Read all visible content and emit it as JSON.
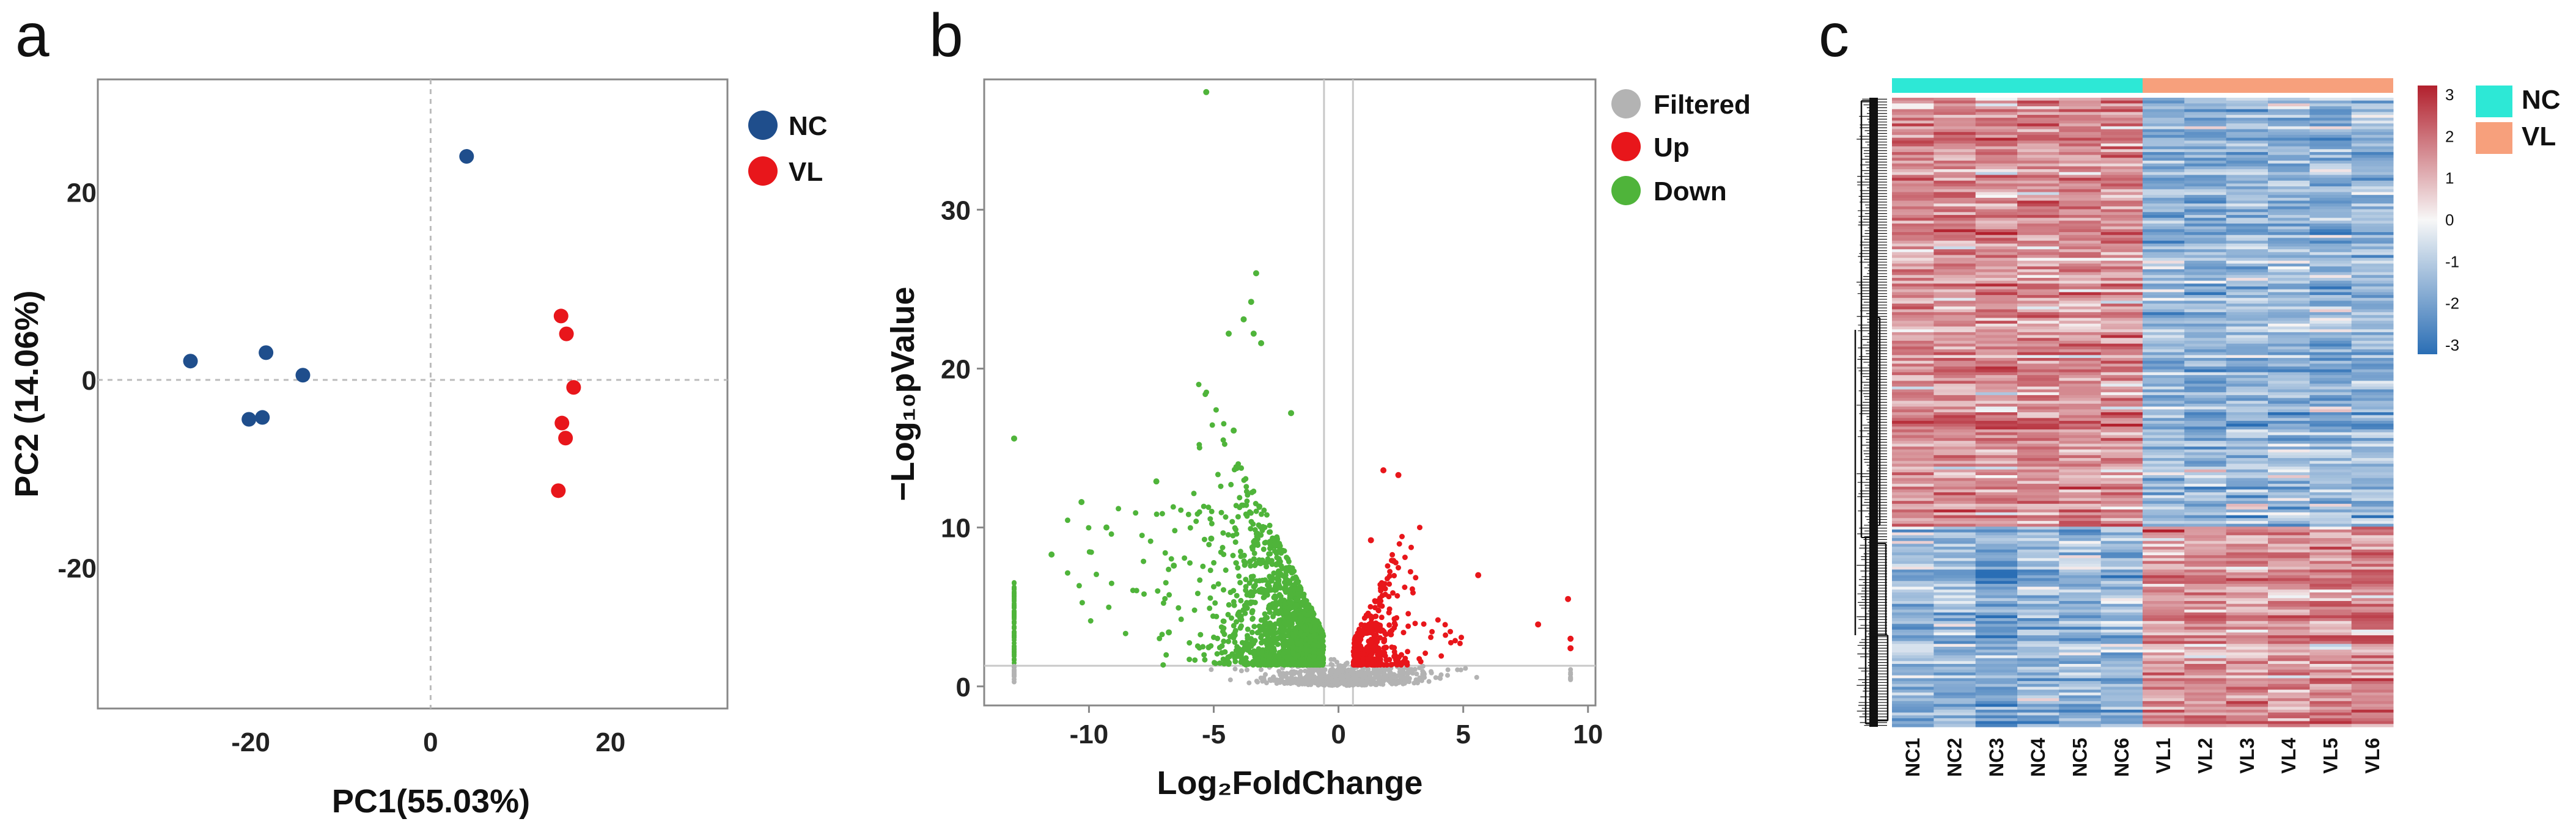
{
  "panels": {
    "a": "a",
    "b": "b",
    "c": "c"
  },
  "chart_data": [
    {
      "type": "scatter",
      "panel": "a",
      "xlabel": "PC1(55.03%)",
      "ylabel": "PC2 (14.06%)",
      "xlim": [
        -37,
        33
      ],
      "ylim": [
        -35,
        32
      ],
      "xticks": [
        "-20",
        "0",
        "20"
      ],
      "yticks": [
        "20",
        "0",
        "-20"
      ],
      "grid": false,
      "legend_position": "outside-right",
      "series": [
        {
          "name": "NC",
          "color": "#1f4e8c",
          "points": [
            [
              -26.7,
              2.0
            ],
            [
              -18.3,
              2.9
            ],
            [
              -14.2,
              0.5
            ],
            [
              -20.2,
              -4.2
            ],
            [
              -18.7,
              -4.0
            ],
            [
              4.0,
              23.8
            ]
          ]
        },
        {
          "name": "VL",
          "color": "#e8161b",
          "points": [
            [
              14.5,
              6.8
            ],
            [
              15.1,
              4.9
            ],
            [
              15.9,
              -0.8
            ],
            [
              14.6,
              -4.6
            ],
            [
              15.0,
              -6.2
            ],
            [
              14.2,
              -11.8
            ]
          ]
        }
      ]
    },
    {
      "type": "scatter",
      "panel": "b",
      "xlabel": "Log₂FoldChange",
      "ylabel": "−Log₁₀pValue",
      "xlim": [
        -14.2,
        10.3
      ],
      "ylim": [
        -1.2,
        38.2
      ],
      "xticks": [
        "-10",
        "-5",
        "0",
        "5",
        "10"
      ],
      "yticks": [
        "0",
        "10",
        "20",
        "30"
      ],
      "threshold_lines": {
        "x": [
          -0.58,
          0.58
        ],
        "y": 1.3
      },
      "legend_position": "outside-right",
      "series": [
        {
          "name": "Filtered",
          "color": "#b3b3b3"
        },
        {
          "name": "Up",
          "color": "#e8161b",
          "points": [
            [
              1.8,
              13.6
            ],
            [
              2.4,
              13.3
            ],
            [
              5.6,
              7.0
            ],
            [
              9.2,
              5.5
            ],
            [
              8.0,
              3.9
            ],
            [
              9.3,
              3.0
            ],
            [
              9.3,
              2.4
            ],
            [
              1.3,
              9.2
            ],
            [
              2.2,
              7.9
            ]
          ]
        },
        {
          "name": "Down",
          "color": "#4fb43a",
          "points": [
            [
              -5.3,
              37.4
            ],
            [
              -3.3,
              26.0
            ],
            [
              -3.5,
              24.2
            ],
            [
              -3.8,
              23.1
            ],
            [
              -3.4,
              22.2
            ],
            [
              -4.4,
              22.2
            ],
            [
              -3.1,
              21.6
            ],
            [
              -4.2,
              16.1
            ],
            [
              -1.9,
              17.2
            ],
            [
              -13.0,
              15.6
            ],
            [
              -10.3,
              11.6
            ],
            [
              -7.3,
              12.9
            ],
            [
              -9.3,
              10.0
            ],
            [
              -11.5,
              8.3
            ],
            [
              -6.6,
              7.6
            ],
            [
              -5.1,
              9.3
            ],
            [
              -6.8,
              3.4
            ],
            [
              -3.9,
              4.2
            ],
            [
              -2.9,
              3.9
            ]
          ]
        }
      ]
    },
    {
      "type": "heatmap",
      "panel": "c",
      "columns": [
        "NC1",
        "NC2",
        "NC3",
        "NC4",
        "NC5",
        "NC6",
        "VL1",
        "VL2",
        "VL3",
        "VL4",
        "VL5",
        "VL6"
      ],
      "groups": [
        {
          "name": "NC",
          "color": "#2de8d6",
          "n": 6
        },
        {
          "name": "VL",
          "color": "#f7a07c",
          "n": 6
        }
      ],
      "colorbar": {
        "ticks": [
          "3",
          "2",
          "1",
          "0",
          "-1",
          "-2",
          "-3"
        ],
        "colors": [
          "#b2202d",
          "#f7f7f7",
          "#2a6eb5"
        ],
        "range": [
          -3,
          3
        ]
      },
      "row_dendrogram": true,
      "pattern": {
        "upper_block": {
          "NC": "red",
          "VL": "blue"
        },
        "lower_block": {
          "NC": "blue",
          "VL": "red"
        }
      }
    }
  ]
}
